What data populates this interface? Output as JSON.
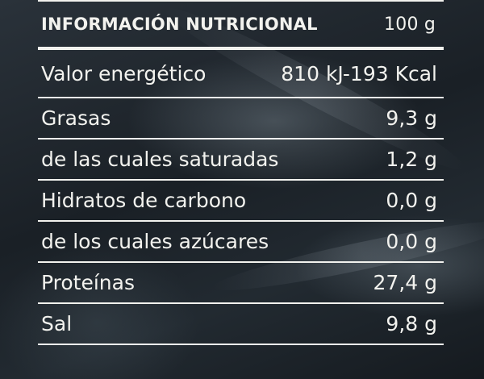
{
  "header": {
    "title": "INFORMACIÓN NUTRICIONAL",
    "per": "100 g"
  },
  "rows": [
    {
      "label": "Valor energético",
      "value": "810 kJ-193 Kcal"
    },
    {
      "label": "Grasas",
      "value": "9,3 g"
    },
    {
      "label": "de las cuales saturadas",
      "value": "1,2 g"
    },
    {
      "label": "Hidratos de carbono",
      "value": "0,0 g"
    },
    {
      "label": "de los cuales azúcares",
      "value": "0,0 g"
    },
    {
      "label": "Proteínas",
      "value": "27,4 g"
    },
    {
      "label": "Sal",
      "value": "9,8 g"
    }
  ],
  "colors": {
    "background": "#1c2329",
    "text": "#f2f2ee"
  }
}
